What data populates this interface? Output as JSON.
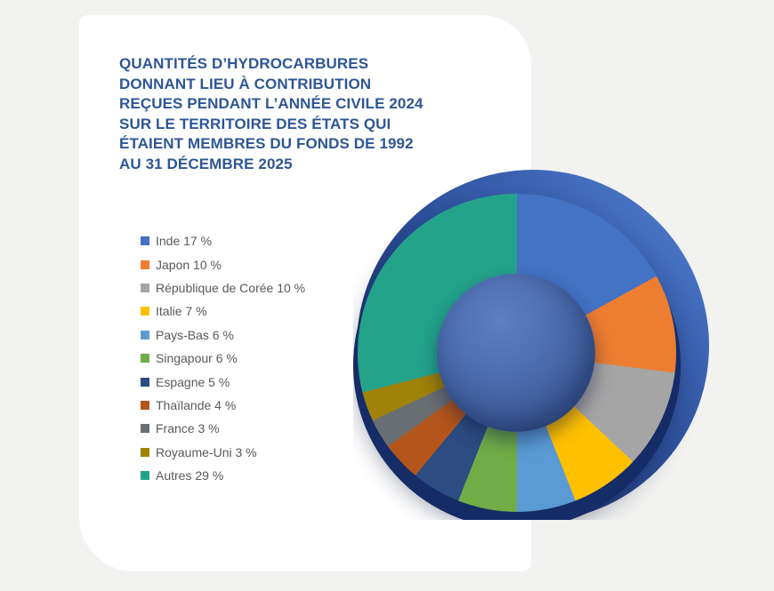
{
  "page": {
    "background_color": "#F2F2F1",
    "card_color": "#FFFFFF"
  },
  "title": {
    "text": "QUANTITÉS D’HYDROCARBURES\nDONNANT LIEU À CONTRIBUTION\nREÇUES PENDANT L’ANNÉE CIVILE 2024\nSUR LE TERRITOIRE DES ÉTATS QUI\nÉTAIENT MEMBRES DU FONDS DE 1992\nAU 31 DÉCEMBRE 2025",
    "color": "#2E5695"
  },
  "chart_data": {
    "type": "pie",
    "subtype": "donut",
    "title": "Quantités d’hydrocarbures donnant lieu à contribution reçues pendant l’année civile 2024 sur le territoire des États qui étaient membres du Fonds de 1992 au 31 décembre 2025",
    "unit": "%",
    "start_angle_deg": 0,
    "direction": "clockwise",
    "legend_position": "left",
    "legend_text_color": "#595959",
    "legend_label_format": "{category} {value} %",
    "categories": [
      "Inde",
      "Japon",
      "République de Corée",
      "Italie",
      "Pays-Bas",
      "Singapour",
      "Espagne",
      "Thaïlande",
      "France",
      "Royaume-Uni",
      "Autres"
    ],
    "values": [
      17,
      10,
      10,
      7,
      6,
      6,
      5,
      4,
      3,
      3,
      29
    ],
    "colors": [
      "#4472C4",
      "#ED7D31",
      "#A5A5A5",
      "#FFC000",
      "#5B9BD5",
      "#70AD47",
      "#2C4C82",
      "#B4561B",
      "#696E72",
      "#A08109",
      "#24A38B"
    ],
    "decor": {
      "backdrop_gradient_dark": "#0F2157",
      "backdrop_gradient_light": "#5583D6",
      "backdrop_shadow_color": "#152C66",
      "center_sphere_light": "#5E80C4",
      "center_sphere_dark": "#2E4A80"
    }
  }
}
